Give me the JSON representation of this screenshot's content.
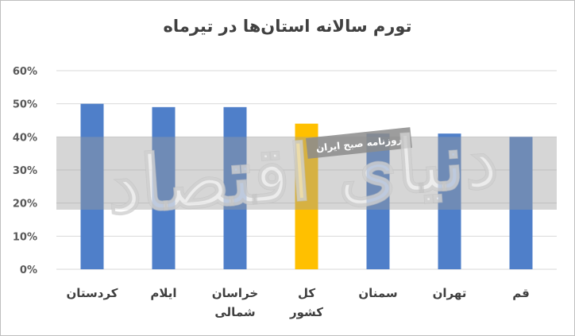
{
  "chart_data": {
    "type": "bar",
    "title": "تورم سالانه استان‌ها در تیرماه",
    "categories": [
      "کردستان",
      "ایلام",
      "خراسان شمالی",
      "کل کشور",
      "سمنان",
      "تهران",
      "قم"
    ],
    "values": [
      50,
      49,
      49,
      44,
      41,
      41,
      40
    ],
    "ylim": [
      0,
      60
    ],
    "yticks": [
      "0%",
      "10%",
      "20%",
      "30%",
      "40%",
      "50%",
      "60%"
    ],
    "xlabel": "",
    "ylabel": "",
    "grid": true,
    "legend": "none",
    "colors": {
      "default": "#4f7fc9",
      "highlight": "#ffc000",
      "highlight_index": 3
    }
  },
  "watermark": {
    "logo_text": "دنیای اقتصاد",
    "badge_text": "روزنامه صبح ایران"
  }
}
